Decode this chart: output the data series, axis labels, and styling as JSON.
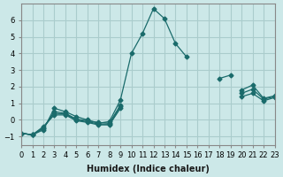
{
  "xlabel": "Humidex (Indice chaleur)",
  "ylabel": "",
  "background_color": "#cce8e8",
  "grid_color": "#aacccc",
  "line_color": "#1a6b6b",
  "xlim": [
    0,
    23
  ],
  "ylim": [
    -1.5,
    7.0
  ],
  "xticks": [
    0,
    1,
    2,
    3,
    4,
    5,
    6,
    7,
    8,
    9,
    10,
    11,
    12,
    13,
    14,
    15,
    16,
    17,
    18,
    19,
    20,
    21,
    22,
    23
  ],
  "yticks": [
    -1,
    0,
    1,
    2,
    3,
    4,
    5,
    6
  ],
  "series": [
    {
      "x": [
        0,
        1,
        2,
        3,
        4,
        5,
        6,
        7,
        8,
        9,
        10,
        11,
        12,
        13,
        14,
        15,
        16,
        17,
        18,
        19,
        20,
        21,
        22,
        23
      ],
      "y": [
        -0.8,
        -0.9,
        -0.6,
        0.7,
        0.5,
        0.2,
        0.0,
        -0.2,
        -0.1,
        1.2,
        4.0,
        5.2,
        6.7,
        6.1,
        4.6,
        3.8,
        null,
        null,
        2.5,
        2.7,
        null,
        null,
        null,
        null
      ]
    },
    {
      "x": [
        0,
        1,
        2,
        3,
        4,
        5,
        6,
        7,
        8,
        9,
        10,
        11,
        12,
        13,
        14,
        15,
        16,
        17,
        18,
        19,
        20,
        21,
        22,
        23
      ],
      "y": [
        -0.8,
        -0.9,
        -0.5,
        0.5,
        0.4,
        0.05,
        -0.05,
        -0.15,
        -0.2,
        0.9,
        null,
        null,
        null,
        null,
        null,
        null,
        null,
        null,
        null,
        null,
        1.8,
        2.1,
        1.3,
        1.45
      ]
    },
    {
      "x": [
        0,
        1,
        2,
        3,
        4,
        5,
        6,
        7,
        8,
        9,
        10,
        11,
        12,
        13,
        14,
        15,
        16,
        17,
        18,
        19,
        20,
        21,
        22,
        23
      ],
      "y": [
        -0.8,
        -0.9,
        -0.5,
        0.4,
        0.35,
        0.0,
        -0.1,
        -0.25,
        -0.25,
        0.8,
        null,
        null,
        null,
        null,
        null,
        null,
        null,
        null,
        null,
        null,
        1.6,
        1.85,
        1.25,
        1.4
      ]
    },
    {
      "x": [
        0,
        1,
        2,
        3,
        4,
        5,
        6,
        7,
        8,
        9,
        10,
        11,
        12,
        13,
        14,
        15,
        16,
        17,
        18,
        19,
        20,
        21,
        22,
        23
      ],
      "y": [
        -0.8,
        -0.9,
        -0.4,
        0.3,
        0.3,
        -0.05,
        -0.15,
        -0.3,
        -0.3,
        0.7,
        null,
        null,
        null,
        null,
        null,
        null,
        null,
        null,
        null,
        null,
        1.4,
        1.6,
        1.15,
        1.35
      ]
    }
  ]
}
